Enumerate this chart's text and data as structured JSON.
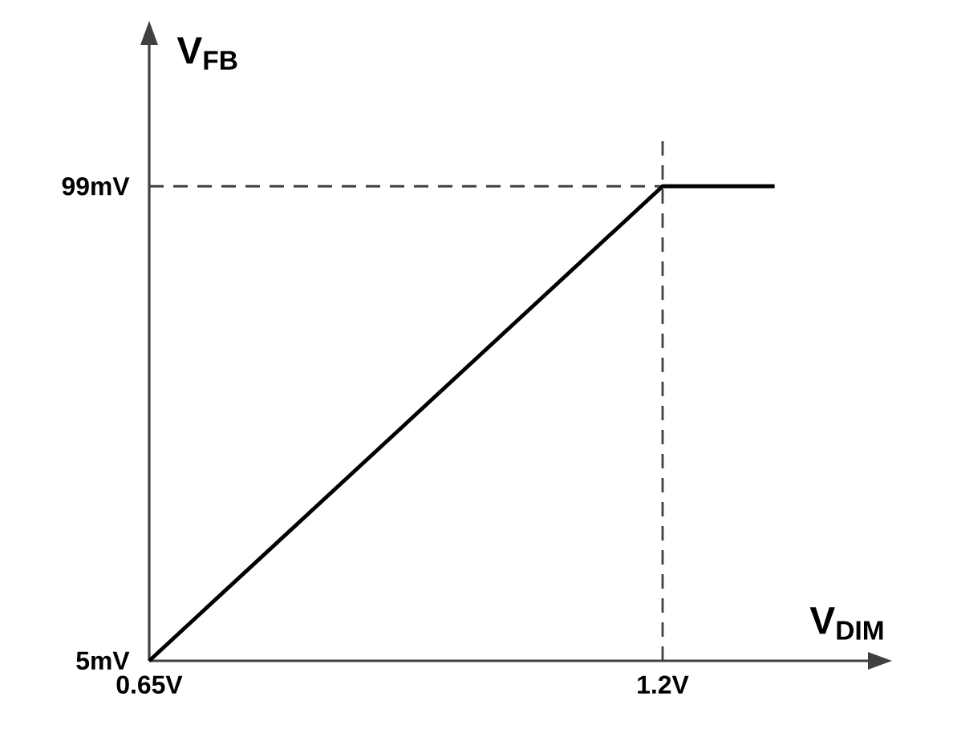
{
  "chart_data": {
    "type": "line",
    "xlabel": "V$_{DIM}$",
    "ylabel": "V$_{FB}$",
    "x": [
      0.65,
      1.2,
      1.32
    ],
    "series": [
      {
        "color": "#000000",
        "values": [
          5,
          99,
          99
        ]
      }
    ],
    "xlim": [
      0.65,
      1.42
    ],
    "ylim": [
      5,
      127
    ],
    "xticks": [
      {
        "value": 0.65,
        "label": "0.65V"
      },
      {
        "value": 1.2,
        "label": "1.2V"
      }
    ],
    "yticks": [
      {
        "value": 5,
        "label": "5mV"
      },
      {
        "value": 99,
        "label": "99mV"
      }
    ],
    "ref_lines": [
      {
        "axis": "x",
        "value": 1.2,
        "line_style": "dashed",
        "color": "#404040"
      },
      {
        "axis": "y",
        "value": 99,
        "line_style": "dashed",
        "color": "#404040"
      }
    ],
    "line_style": "solid"
  }
}
